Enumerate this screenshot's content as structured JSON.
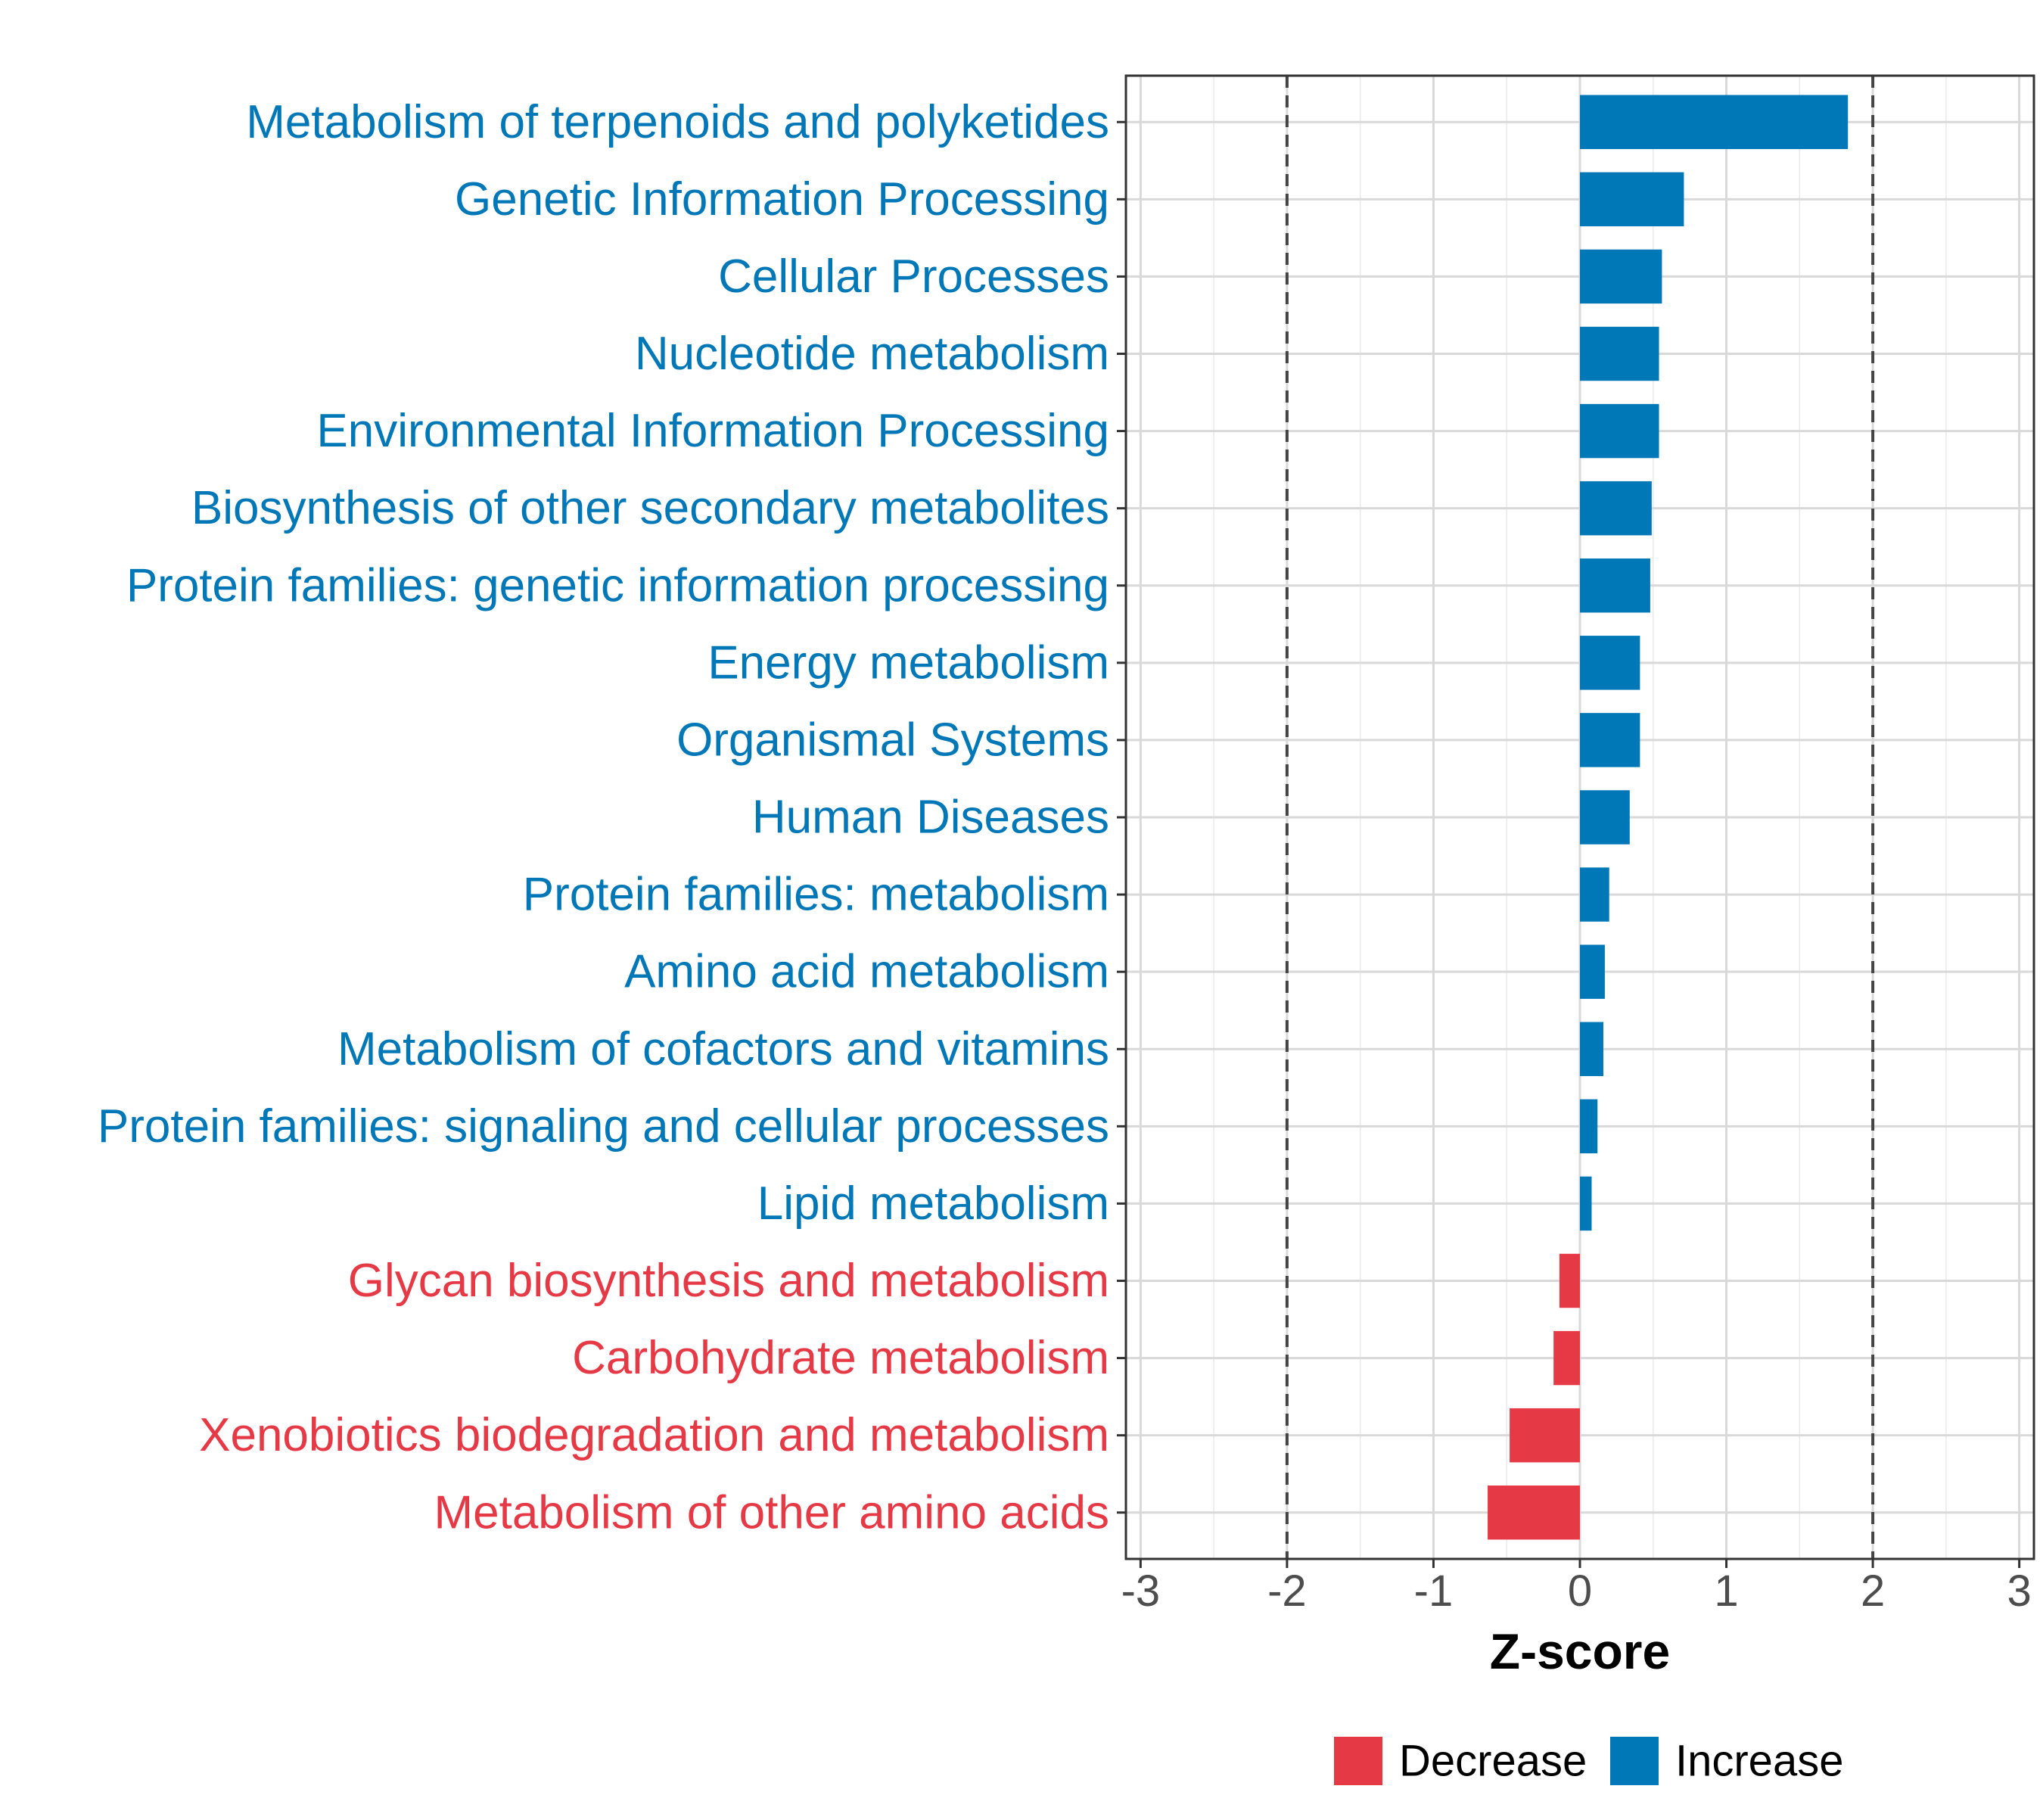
{
  "chart_data": {
    "type": "bar",
    "orientation": "horizontal",
    "xlabel": "Z-score",
    "xlim": [
      -3.1,
      3.1
    ],
    "xticks": [
      -3,
      -2,
      -1,
      0,
      1,
      2,
      3
    ],
    "xtick_labels": [
      "-3",
      "-2",
      "-1",
      "0",
      "1",
      "2",
      "3"
    ],
    "reference_lines": [
      -2,
      2
    ],
    "grid": true,
    "legend_position": "bottom",
    "legend": [
      {
        "key": "decrease",
        "label": "Decrease",
        "color": "#E63946"
      },
      {
        "key": "increase",
        "label": "Increase",
        "color": "#0077B6"
      }
    ],
    "categories": [
      "Metabolism of terpenoids and polyketides",
      "Genetic Information Processing",
      "Cellular Processes",
      "Nucleotide metabolism",
      "Environmental Information Processing",
      "Biosynthesis of other secondary metabolites",
      "Protein families: genetic information processing",
      "Energy metabolism",
      "Organismal Systems",
      "Human Diseases",
      "Protein families: metabolism",
      "Amino acid metabolism",
      "Metabolism of cofactors and vitamins",
      "Protein families: signaling and cellular processes",
      "Lipid metabolism",
      "Glycan biosynthesis and metabolism",
      "Carbohydrate metabolism",
      "Xenobiotics biodegradation and metabolism",
      "Metabolism of other amino acids"
    ],
    "values": [
      1.83,
      0.71,
      0.56,
      0.54,
      0.54,
      0.49,
      0.48,
      0.41,
      0.41,
      0.34,
      0.2,
      0.17,
      0.16,
      0.12,
      0.08,
      -0.14,
      -0.18,
      -0.48,
      -0.63
    ],
    "groups": [
      "increase",
      "increase",
      "increase",
      "increase",
      "increase",
      "increase",
      "increase",
      "increase",
      "increase",
      "increase",
      "increase",
      "increase",
      "increase",
      "increase",
      "increase",
      "decrease",
      "decrease",
      "decrease",
      "decrease"
    ]
  }
}
